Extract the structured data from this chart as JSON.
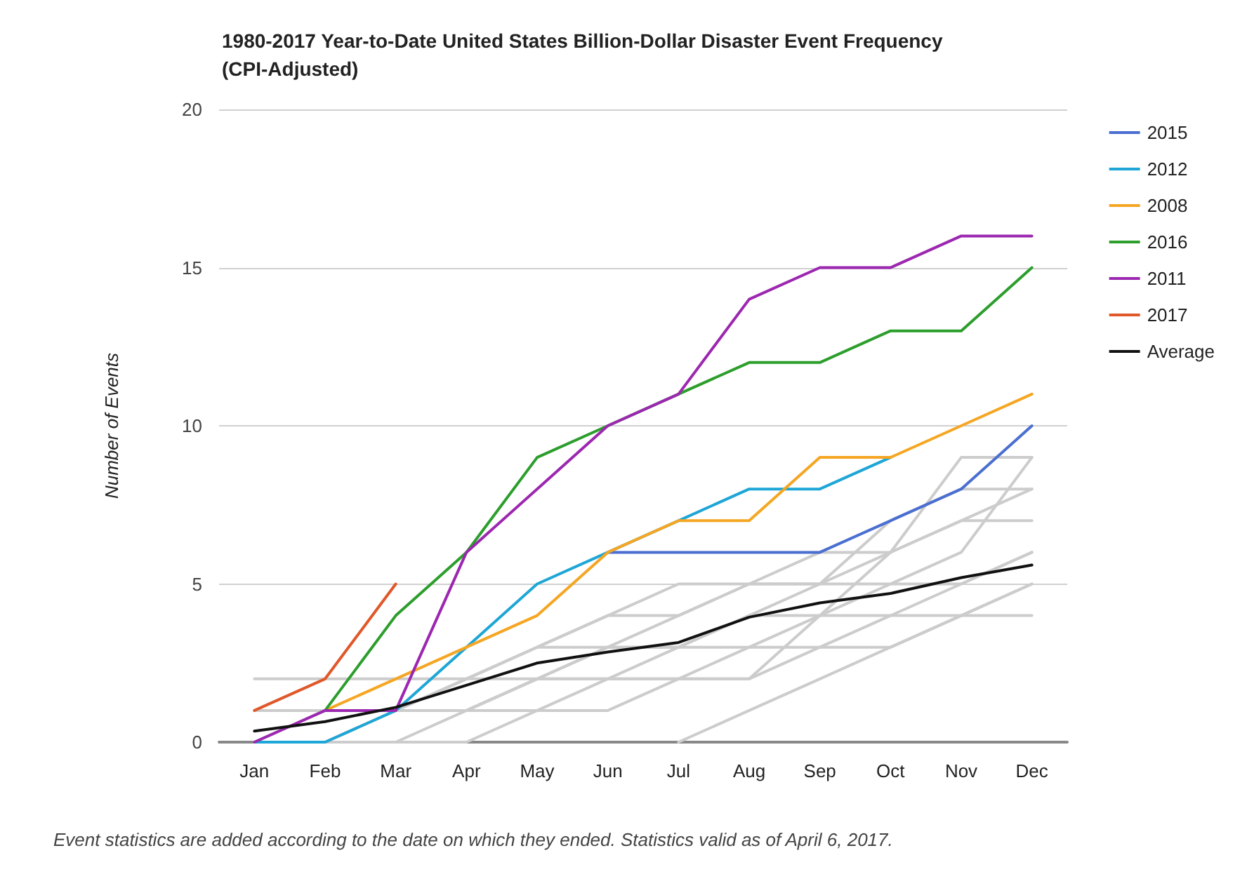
{
  "chart_data": {
    "type": "line",
    "title": "1980-2017 Year-to-Date United States Billion-Dollar Disaster Event Frequency (CPI-Adjusted)",
    "ylabel": "Number of Events",
    "categories": [
      "Jan",
      "Feb",
      "Mar",
      "Apr",
      "May",
      "Jun",
      "Jul",
      "Aug",
      "Sep",
      "Oct",
      "Nov",
      "Dec"
    ],
    "ylim": [
      0,
      20
    ],
    "yticks": [
      0,
      5,
      10,
      15,
      20
    ],
    "grid": "y",
    "legend": "right",
    "marker": "none",
    "line_style": "solid",
    "annotations": [
      "Event statistics are added according to the date on which they ended. Statistics valid as of April 6, 2017."
    ],
    "series": [
      {
        "color": "#cccccc",
        "values": [
          0,
          0,
          1,
          1,
          2,
          2,
          2,
          3,
          4,
          5,
          5,
          6
        ]
      },
      {
        "color": "#cccccc",
        "values": [
          1,
          1,
          1,
          2,
          3,
          3,
          4,
          5,
          5,
          6,
          7,
          8
        ]
      },
      {
        "color": "#cccccc",
        "values": [
          2,
          2,
          2,
          2,
          3,
          4,
          4,
          5,
          6,
          6,
          7,
          7
        ]
      },
      {
        "color": "#cccccc",
        "values": [
          0,
          1,
          1,
          2,
          2,
          3,
          3,
          4,
          5,
          5,
          6,
          9
        ]
      },
      {
        "color": "#cccccc",
        "values": [
          null,
          null,
          null,
          null,
          null,
          null,
          0,
          1,
          2,
          3,
          4,
          5
        ]
      },
      {
        "color": "#cccccc",
        "values": [
          0,
          0,
          0,
          1,
          1,
          2,
          2,
          2,
          3,
          3,
          4,
          5
        ]
      },
      {
        "color": "#cccccc",
        "values": [
          1,
          1,
          1,
          1,
          2,
          3,
          3,
          4,
          4,
          6,
          9,
          9
        ]
      },
      {
        "color": "#cccccc",
        "values": [
          0,
          0,
          1,
          2,
          3,
          4,
          5,
          5,
          5,
          7,
          8,
          8
        ]
      },
      {
        "color": "#cccccc",
        "values": [
          null,
          null,
          0,
          0,
          1,
          1,
          2,
          2,
          4,
          4,
          5,
          6
        ]
      },
      {
        "color": "#cccccc",
        "values": [
          0,
          1,
          1,
          1,
          2,
          2,
          3,
          3,
          3,
          4,
          4,
          4
        ]
      },
      {
        "name": "2015",
        "color": "#4a6fd1",
        "values": [
          null,
          null,
          null,
          null,
          null,
          6,
          6,
          6,
          6,
          7,
          8,
          10
        ]
      },
      {
        "name": "2012",
        "color": "#1ea6d6",
        "values": [
          0,
          0,
          1,
          3,
          5,
          6,
          7,
          8,
          8,
          9,
          null,
          null
        ]
      },
      {
        "name": "2008",
        "color": "#f5a623",
        "values": [
          null,
          1,
          2,
          3,
          4,
          6,
          7,
          7,
          9,
          9,
          10,
          11
        ]
      },
      {
        "name": "2016",
        "color": "#2c9e2c",
        "values": [
          null,
          1,
          4,
          6,
          9,
          10,
          11,
          12,
          12,
          13,
          13,
          15
        ]
      },
      {
        "name": "2011",
        "color": "#9c27b0",
        "values": [
          0,
          1,
          1,
          6,
          8,
          10,
          11,
          14,
          15,
          15,
          16,
          16
        ]
      },
      {
        "name": "2017",
        "color": "#e0582a",
        "values": [
          1,
          2,
          5,
          null,
          null,
          null,
          null,
          null,
          null,
          null,
          null,
          null
        ]
      },
      {
        "name": "Average",
        "color": "#111111",
        "values": [
          0.35,
          0.65,
          1.1,
          1.8,
          2.5,
          2.85,
          3.15,
          3.95,
          4.4,
          4.7,
          5.2,
          5.6
        ]
      }
    ]
  }
}
